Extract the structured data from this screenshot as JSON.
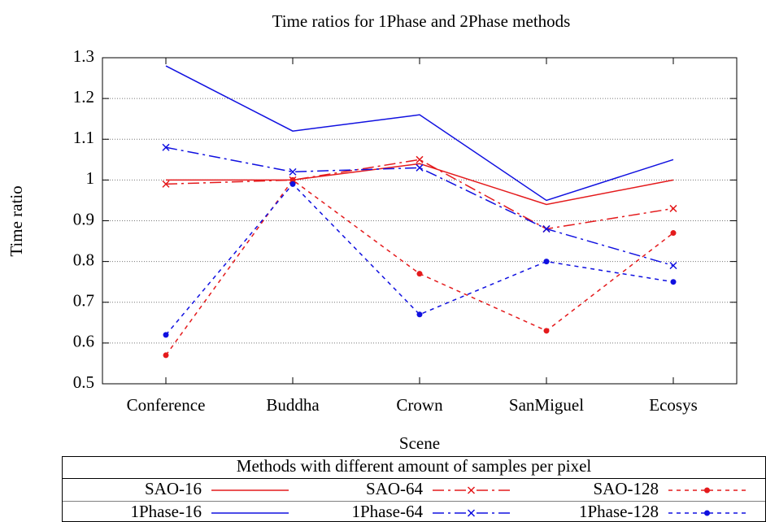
{
  "chart_data": {
    "type": "line",
    "title": "Time ratios for 1Phase and 2Phase methods",
    "x_label": "Scene",
    "y_label": "Time ratio",
    "categories": [
      "Conference",
      "Buddha",
      "Crown",
      "SanMiguel",
      "Ecosys"
    ],
    "ylim": [
      0.5,
      1.3
    ],
    "yticks": [
      0.5,
      0.6,
      0.7,
      0.8,
      0.9,
      1,
      1.1,
      1.2,
      1.3
    ],
    "grid": true,
    "legend_title": "Methods with different amount of samples per pixel",
    "series": [
      {
        "name": "SAO-16",
        "color": "#e41a1c",
        "dash": "solid",
        "marker": "none",
        "values": [
          1.0,
          1.0,
          1.04,
          0.94,
          1.0
        ]
      },
      {
        "name": "SAO-64",
        "color": "#e41a1c",
        "dash": "dashdot",
        "marker": "cross",
        "values": [
          0.99,
          1.0,
          1.05,
          0.88,
          0.93
        ]
      },
      {
        "name": "SAO-128",
        "color": "#e41a1c",
        "dash": "dotted",
        "marker": "dot",
        "values": [
          0.57,
          1.0,
          0.77,
          0.63,
          0.87
        ]
      },
      {
        "name": "1Phase-16",
        "color": "#1010e0",
        "dash": "solid",
        "marker": "none",
        "values": [
          1.28,
          1.12,
          1.16,
          0.95,
          1.05
        ]
      },
      {
        "name": "1Phase-64",
        "color": "#1010e0",
        "dash": "dashdot",
        "marker": "cross",
        "values": [
          1.08,
          1.02,
          1.03,
          0.88,
          0.79
        ]
      },
      {
        "name": "1Phase-128",
        "color": "#1010e0",
        "dash": "dotted",
        "marker": "dot",
        "values": [
          0.62,
          0.99,
          0.67,
          0.8,
          0.75
        ]
      }
    ]
  }
}
